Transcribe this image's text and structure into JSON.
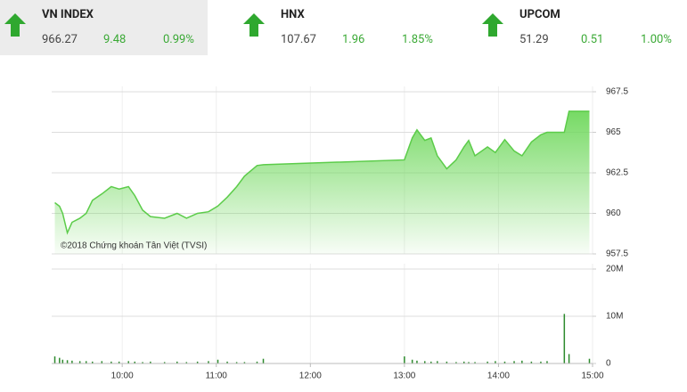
{
  "indices": [
    {
      "name": "VN INDEX",
      "value": "966.27",
      "change": "9.48",
      "percent": "0.99%"
    },
    {
      "name": "HNX",
      "value": "107.67",
      "change": "1.96",
      "percent": "1.85%"
    },
    {
      "name": "UPCOM",
      "value": "51.29",
      "change": "0.51",
      "percent": "1.00%"
    }
  ],
  "chart_data": [
    {
      "type": "area",
      "annotation": "©2018 Chứng khoán Tân Việt (TVSI)",
      "color": "#5ccc4a",
      "x": [
        557,
        560,
        562,
        565,
        568,
        573,
        577,
        581,
        587,
        593,
        598,
        604,
        608,
        613,
        618,
        627,
        635,
        641,
        648,
        655,
        661,
        667,
        673,
        678,
        686,
        690,
        780,
        785,
        788,
        793,
        797,
        801,
        807,
        813,
        818,
        821,
        825,
        833,
        838,
        844,
        850,
        855,
        861,
        867,
        871,
        882,
        885,
        898
      ],
      "values": [
        960.66,
        960.44,
        960,
        958.8,
        959.45,
        959.7,
        960,
        960.8,
        961.2,
        961.65,
        961.5,
        961.65,
        961.1,
        960.2,
        959.8,
        959.7,
        960,
        959.7,
        960,
        960.1,
        960.45,
        961,
        961.65,
        962.3,
        962.95,
        963,
        963.3,
        964.65,
        965.15,
        964.5,
        964.65,
        963.55,
        962.75,
        963.3,
        964.1,
        964.5,
        963.55,
        964.1,
        963.75,
        964.55,
        963.85,
        963.55,
        964.4,
        964.85,
        965,
        965,
        966.3,
        966.3
      ],
      "xlim": [
        555,
        900
      ],
      "ylim": [
        957.5,
        967.5
      ],
      "yticks": [
        957.5,
        960,
        962.5,
        965,
        967.5
      ],
      "grid": true
    },
    {
      "type": "bar",
      "color": "#2d8a2d",
      "x": [
        557,
        560,
        562,
        565,
        568,
        573,
        577,
        581,
        587,
        593,
        598,
        604,
        608,
        613,
        618,
        627,
        635,
        641,
        648,
        655,
        661,
        667,
        673,
        678,
        686,
        690,
        780,
        785,
        788,
        793,
        797,
        801,
        807,
        813,
        818,
        821,
        825,
        833,
        838,
        844,
        850,
        855,
        861,
        867,
        871,
        882,
        885,
        898
      ],
      "values": [
        1500000,
        1200000,
        800000,
        700000,
        600000,
        500000,
        500000,
        400000,
        500000,
        400000,
        400000,
        500000,
        400000,
        300000,
        400000,
        300000,
        400000,
        300000,
        400000,
        500000,
        800000,
        400000,
        300000,
        300000,
        400000,
        1000000,
        1500000,
        800000,
        600000,
        500000,
        400000,
        500000,
        400000,
        300000,
        400000,
        300000,
        300000,
        400000,
        500000,
        400000,
        500000,
        600000,
        400000,
        400000,
        500000,
        10500000,
        2000000,
        1000000
      ],
      "xlim": [
        555,
        900
      ],
      "ylim": [
        0,
        20000000
      ],
      "xticks": [
        {
          "value": 600,
          "label": "10:00"
        },
        {
          "value": 660,
          "label": "11:00"
        },
        {
          "value": 720,
          "label": "12:00"
        },
        {
          "value": 780,
          "label": "13:00"
        },
        {
          "value": 840,
          "label": "14:00"
        },
        {
          "value": 900,
          "label": "15:00"
        }
      ],
      "yticks": [
        {
          "value": 20000000,
          "label": "20M"
        },
        {
          "value": 10000000,
          "label": "10M"
        },
        0
      ],
      "grid": true
    }
  ]
}
